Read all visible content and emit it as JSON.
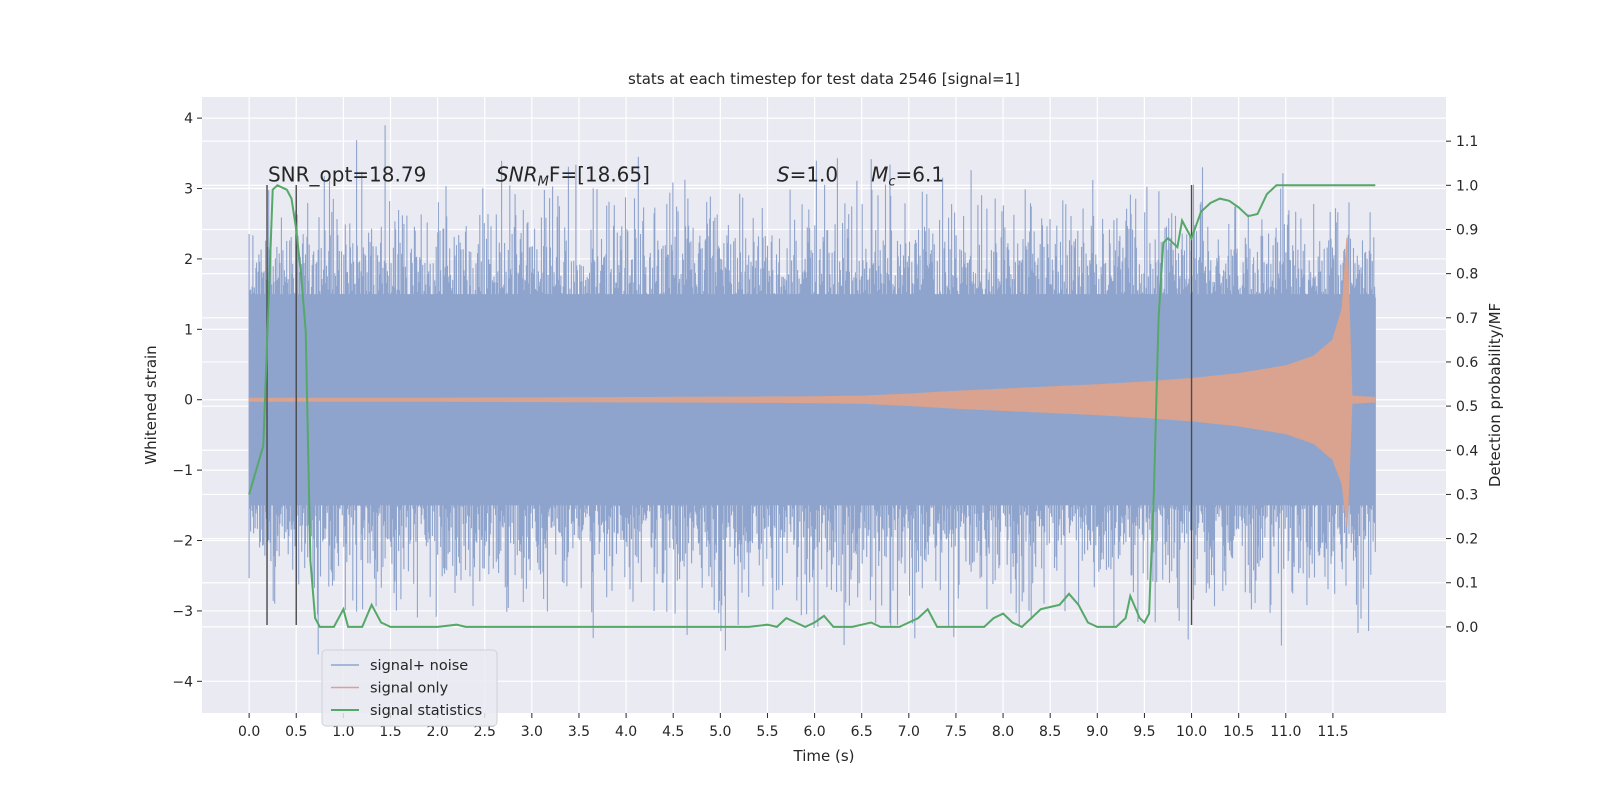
{
  "chart_data": {
    "type": "line",
    "title": "stats at each timestep for test data 2546 [signal=1]",
    "xlabel": "Time (s)",
    "ylabel": "Whitened strain",
    "ylabel_right": "Detection probability/MF",
    "xlim": [
      -0.5,
      12.7
    ],
    "ylim": [
      -4.45,
      4.3
    ],
    "ylim_right": [
      -0.195,
      1.2
    ],
    "x_ticks": [
      0.0,
      0.5,
      1.0,
      1.5,
      2.0,
      2.5,
      3.0,
      3.5,
      4.0,
      4.5,
      5.0,
      5.5,
      6.0,
      6.5,
      7.0,
      7.5,
      8.0,
      8.5,
      9.0,
      9.5,
      10.0,
      10.5,
      11.0,
      11.5
    ],
    "x_tick_labels": [
      "0.0",
      "0.5",
      "1.0",
      "1.5",
      "2.0",
      "2.5",
      "3.0",
      "3.5",
      "4.0",
      "4.5",
      "5.0",
      "5.5",
      "6.0",
      "6.5",
      "7.0",
      "7.5",
      "8.0",
      "8.5",
      "9.0",
      "9.5",
      "10.0",
      "10.5",
      "11.0",
      "11.5"
    ],
    "y_ticks": [
      -4,
      -3,
      -2,
      -1,
      0,
      1,
      2,
      3,
      4
    ],
    "y_tick_labels": [
      "−4",
      "−3",
      "−2",
      "−1",
      "0",
      "1",
      "2",
      "3",
      "4"
    ],
    "y_right_ticks": [
      0.0,
      0.1,
      0.2,
      0.3,
      0.4,
      0.5,
      0.6,
      0.7,
      0.8,
      0.9,
      1.0,
      1.1
    ],
    "y_right_tick_labels": [
      "0.0",
      "0.1",
      "0.2",
      "0.3",
      "0.4",
      "0.5",
      "0.6",
      "0.7",
      "0.8",
      "0.9",
      "1.0",
      "1.1"
    ],
    "grid": true,
    "legend_position": "lower-left",
    "annotations": [
      {
        "text": "SNR_opt=18.79",
        "x": 0.2,
        "y": 3.1
      },
      {
        "text": "SNR_MF=[18.65]",
        "x": 2.62,
        "y": 3.1
      },
      {
        "text": "S=1.0",
        "x": 5.6,
        "y": 3.1
      },
      {
        "text": "M_c=6.1",
        "x": 6.6,
        "y": 3.1
      }
    ],
    "vertical_lines": [
      {
        "x": 0.19,
        "y_range": [
          -3.2,
          3.05
        ]
      },
      {
        "x": 0.5,
        "y_range": [
          -3.2,
          3.05
        ]
      },
      {
        "x": 10.0,
        "y_range": [
          -3.2,
          3.05
        ]
      }
    ],
    "series": [
      {
        "name": "signal+ noise",
        "color": "#8fa4cc",
        "axis": "left",
        "description": "dense noisy time series from 0 to 12 s, core band roughly ±1.5, spikes up to about ±4",
        "x_range": [
          0.0,
          11.95
        ],
        "core_band": [
          -1.5,
          1.5
        ],
        "peak_max": 3.9,
        "peak_min": -4.1
      },
      {
        "name": "signal only",
        "color": "#d9a38f",
        "axis": "left",
        "description": "chirp waveform with amplitude growing toward merger near 11.67 s",
        "envelope_x": [
          0.0,
          2.0,
          4.0,
          6.0,
          6.5,
          7.0,
          7.5,
          8.0,
          8.5,
          9.0,
          9.5,
          10.0,
          10.5,
          11.0,
          11.3,
          11.5,
          11.6,
          11.65,
          11.7,
          11.95
        ],
        "envelope_upper": [
          0.02,
          0.02,
          0.03,
          0.04,
          0.05,
          0.08,
          0.12,
          0.15,
          0.18,
          0.21,
          0.25,
          0.3,
          0.37,
          0.48,
          0.62,
          0.85,
          1.3,
          2.3,
          0.05,
          0.03
        ],
        "envelope_lower": [
          -0.02,
          -0.02,
          -0.03,
          -0.04,
          -0.05,
          -0.08,
          -0.12,
          -0.15,
          -0.18,
          -0.21,
          -0.25,
          -0.3,
          -0.37,
          -0.48,
          -0.62,
          -0.85,
          -1.2,
          -1.8,
          -0.05,
          -0.03
        ]
      },
      {
        "name": "signal statistics",
        "color": "#55a868",
        "axis": "right",
        "x": [
          0.0,
          0.15,
          0.25,
          0.3,
          0.4,
          0.45,
          0.5,
          0.55,
          0.6,
          0.65,
          0.7,
          0.75,
          0.8,
          0.9,
          1.0,
          1.05,
          1.1,
          1.2,
          1.3,
          1.4,
          1.5,
          1.6,
          1.8,
          2.0,
          2.2,
          2.3,
          2.5,
          3.0,
          4.0,
          5.0,
          5.3,
          5.5,
          5.6,
          5.7,
          5.8,
          5.9,
          6.0,
          6.1,
          6.2,
          6.3,
          6.4,
          6.5,
          6.6,
          6.7,
          6.8,
          6.9,
          7.0,
          7.1,
          7.2,
          7.3,
          7.4,
          7.5,
          7.6,
          7.7,
          7.8,
          7.9,
          8.0,
          8.1,
          8.2,
          8.3,
          8.4,
          8.5,
          8.6,
          8.7,
          8.8,
          8.9,
          9.0,
          9.1,
          9.2,
          9.3,
          9.35,
          9.45,
          9.5,
          9.55,
          9.6,
          9.65,
          9.7,
          9.75,
          9.8,
          9.85,
          9.9,
          9.95,
          10.0,
          10.1,
          10.2,
          10.3,
          10.4,
          10.5,
          10.6,
          10.7,
          10.8,
          10.9,
          11.0,
          11.5,
          11.95
        ],
        "y": [
          0.3,
          0.41,
          0.99,
          1.0,
          0.99,
          0.97,
          0.9,
          0.8,
          0.67,
          0.15,
          0.02,
          0.0,
          0.0,
          0.0,
          0.04,
          0.0,
          0.0,
          0.0,
          0.05,
          0.01,
          0.0,
          0.0,
          0.0,
          0.0,
          0.005,
          0.0,
          0.0,
          0.0,
          0.0,
          0.0,
          0.0,
          0.005,
          0.0,
          0.02,
          0.01,
          0.0,
          0.01,
          0.025,
          0.0,
          0.0,
          0.0,
          0.005,
          0.01,
          0.0,
          0.0,
          0.0,
          0.01,
          0.02,
          0.04,
          0.0,
          0.0,
          0.0,
          0.0,
          0.0,
          0.0,
          0.02,
          0.03,
          0.01,
          0.0,
          0.02,
          0.04,
          0.045,
          0.05,
          0.075,
          0.05,
          0.01,
          0.0,
          0.0,
          0.0,
          0.02,
          0.07,
          0.02,
          0.01,
          0.03,
          0.3,
          0.7,
          0.87,
          0.88,
          0.87,
          0.86,
          0.92,
          0.9,
          0.88,
          0.94,
          0.96,
          0.97,
          0.965,
          0.95,
          0.93,
          0.935,
          0.98,
          1.0,
          1.0,
          1.0,
          1.0
        ]
      }
    ]
  }
}
